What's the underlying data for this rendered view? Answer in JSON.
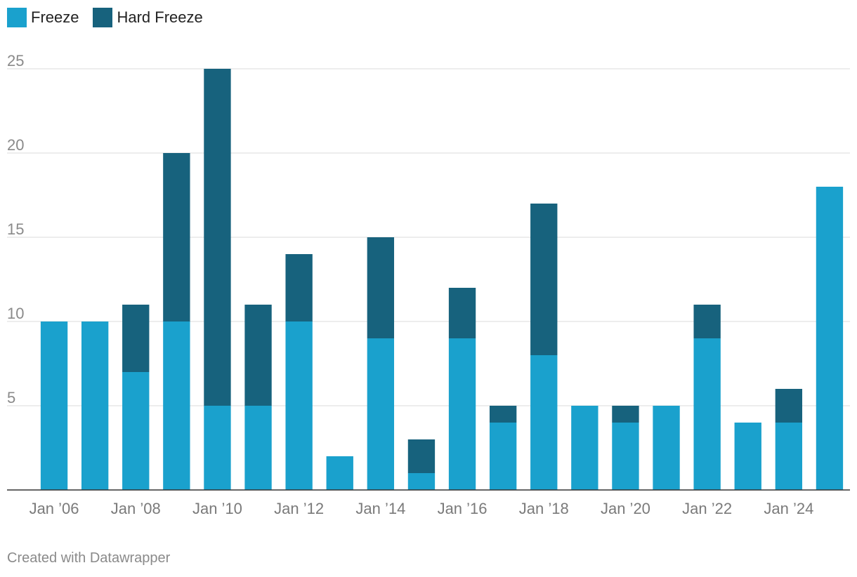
{
  "legend": {
    "items": [
      {
        "label": "Freeze",
        "color": "#1aa1cd"
      },
      {
        "label": "Hard Freeze",
        "color": "#17627d"
      }
    ]
  },
  "footer": {
    "credit": "Created with Datawrapper"
  },
  "chart_data": {
    "type": "bar",
    "stacked": true,
    "title": "",
    "xlabel": "",
    "ylabel": "",
    "ylim": [
      0,
      25
    ],
    "yticks": [
      5,
      10,
      15,
      20,
      25
    ],
    "grid": true,
    "legend_position": "top-left",
    "categories": [
      "2006",
      "2007",
      "2008",
      "2009",
      "2010",
      "2011",
      "2012",
      "2013",
      "2014",
      "2015",
      "2016",
      "2017",
      "2018",
      "2019",
      "2020",
      "2021",
      "2022",
      "2023",
      "2024",
      "2025"
    ],
    "xtick_labels": [
      {
        "category": "2006",
        "label": "Jan ’06"
      },
      {
        "category": "2008",
        "label": "Jan ’08"
      },
      {
        "category": "2010",
        "label": "Jan ’10"
      },
      {
        "category": "2012",
        "label": "Jan ’12"
      },
      {
        "category": "2014",
        "label": "Jan ’14"
      },
      {
        "category": "2016",
        "label": "Jan ’16"
      },
      {
        "category": "2018",
        "label": "Jan ’18"
      },
      {
        "category": "2020",
        "label": "Jan ’20"
      },
      {
        "category": "2022",
        "label": "Jan ’22"
      },
      {
        "category": "2024",
        "label": "Jan ’24"
      }
    ],
    "series": [
      {
        "name": "Freeze",
        "color": "#1aa1cd",
        "values": [
          10,
          10,
          7,
          10,
          5,
          5,
          10,
          2,
          9,
          1,
          9,
          4,
          8,
          5,
          4,
          5,
          9,
          4,
          4,
          18
        ]
      },
      {
        "name": "Hard Freeze",
        "color": "#17627d",
        "values": [
          0,
          0,
          4,
          10,
          20,
          6,
          4,
          0,
          6,
          2,
          3,
          1,
          9,
          0,
          1,
          0,
          2,
          0,
          2,
          0
        ]
      }
    ]
  }
}
